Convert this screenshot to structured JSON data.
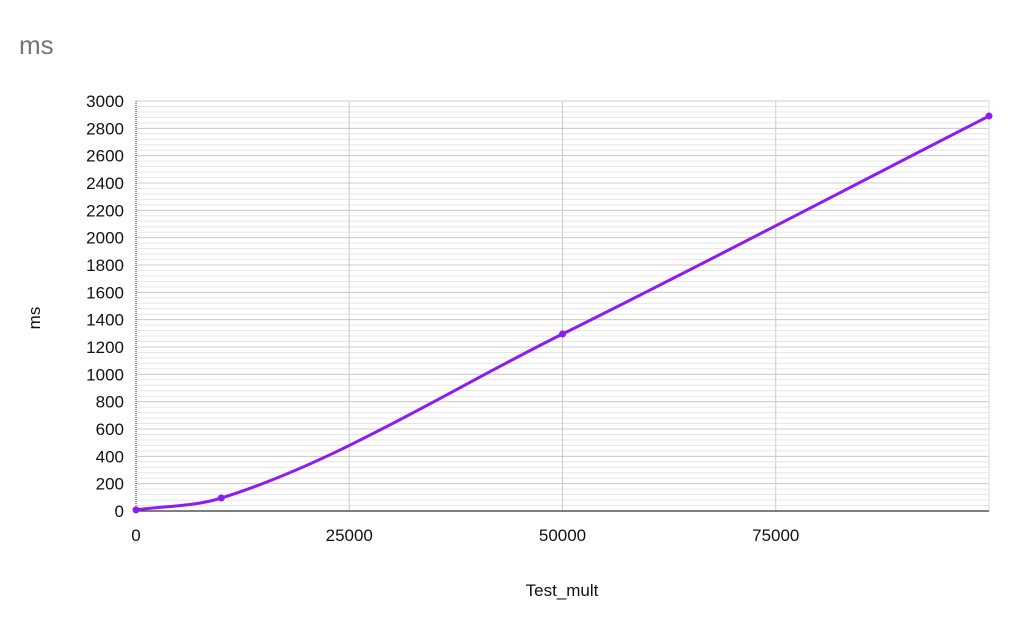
{
  "chart_data": {
    "type": "line",
    "title": "ms",
    "xlabel": "Test_mult",
    "ylabel": "ms",
    "xlim": [
      0,
      100000
    ],
    "ylim": [
      0,
      3000
    ],
    "x_ticks": [
      0,
      25000,
      50000,
      75000
    ],
    "y_ticks": [
      0,
      200,
      400,
      600,
      800,
      1000,
      1200,
      1400,
      1600,
      1800,
      2000,
      2200,
      2400,
      2600,
      2800,
      3000
    ],
    "grid": true,
    "legend": "none",
    "series": [
      {
        "color": "#8e1cf2",
        "points": [
          {
            "x": 0,
            "y": 8
          },
          {
            "x": 10000,
            "y": 95
          },
          {
            "x": 50000,
            "y": 1295
          },
          {
            "x": 100000,
            "y": 2890
          }
        ]
      }
    ]
  }
}
